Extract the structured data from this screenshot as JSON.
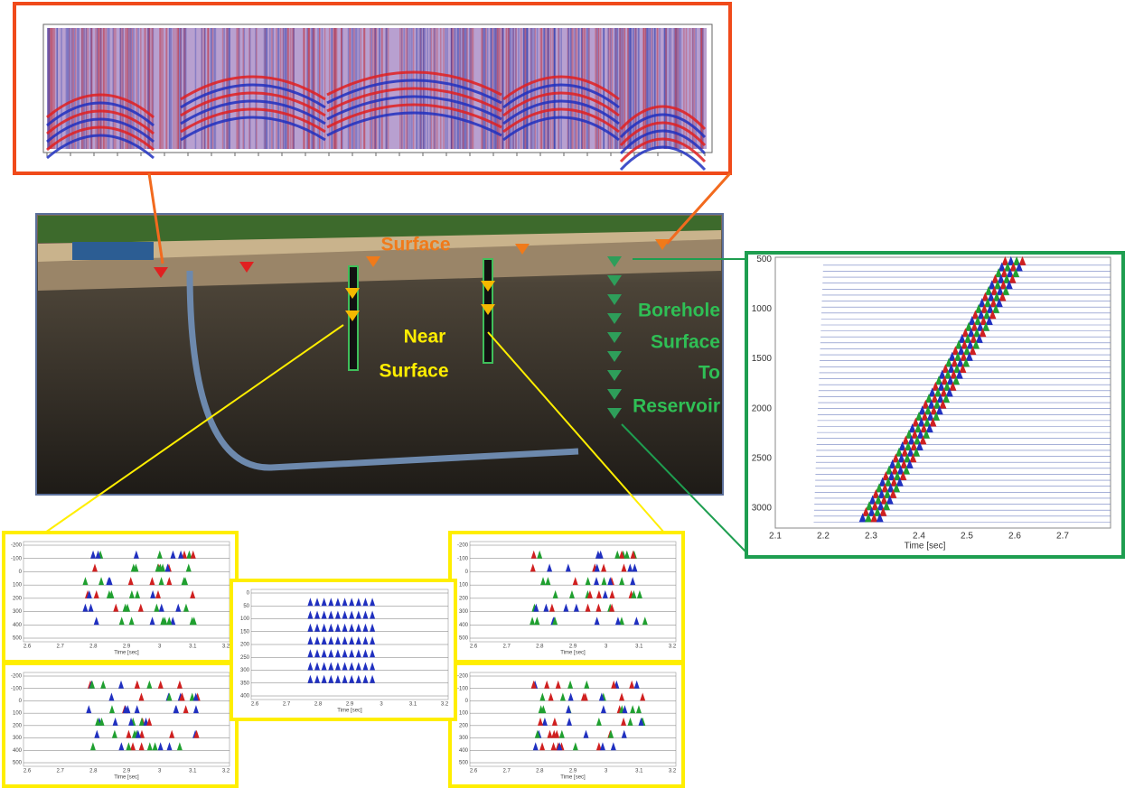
{
  "labels": {
    "surface": "Surface",
    "near_surface": [
      "Near",
      "Surface"
    ],
    "borehole": [
      "Borehole",
      "Surface",
      "To",
      "Reservoir"
    ]
  },
  "vsp_plot": {
    "ylim": [
      480,
      3200
    ],
    "yticks": [
      500,
      1000,
      1500,
      2000,
      2500,
      3000
    ],
    "xlim": [
      2.1,
      2.8
    ],
    "xticks": [
      2.1,
      2.2,
      2.3,
      2.4,
      2.5,
      2.6,
      2.7
    ],
    "xlabel": "Time [sec]"
  },
  "gather_plot": {
    "yticks": [
      -200,
      -100,
      0,
      100,
      200,
      300,
      400,
      500
    ],
    "xticks": [
      2.6,
      2.7,
      2.8,
      2.9,
      3,
      3.1,
      3.2
    ],
    "xlabel": "Time [sec]"
  },
  "center_plot": {
    "yticks": [
      0,
      50,
      100,
      150,
      200,
      250,
      300,
      350,
      400
    ],
    "xticks": [
      2.6,
      2.7,
      2.8,
      2.9,
      3,
      3.1,
      3.2
    ],
    "xlabel": "Time [sec]"
  }
}
